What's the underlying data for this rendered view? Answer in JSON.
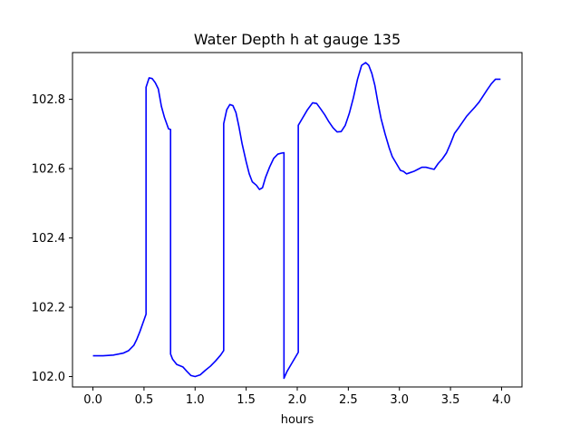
{
  "chart_data": {
    "type": "line",
    "title": "Water Depth h at gauge 135",
    "xlabel": "hours",
    "ylabel": "",
    "xlim": [
      -0.2,
      4.2
    ],
    "ylim": [
      101.97,
      102.935
    ],
    "grid": false,
    "x_ticks": [
      0.0,
      0.5,
      1.0,
      1.5,
      2.0,
      2.5,
      3.0,
      3.5,
      4.0
    ],
    "x_tick_labels": [
      "0.0",
      "0.5",
      "1.0",
      "1.5",
      "2.0",
      "2.5",
      "3.0",
      "3.5",
      "4.0"
    ],
    "y_ticks": [
      102.0,
      102.2,
      102.4,
      102.6,
      102.8
    ],
    "y_tick_labels": [
      "102.0",
      "102.2",
      "102.4",
      "102.6",
      "102.8"
    ],
    "series": [
      {
        "color": "#0000ff",
        "x": [
          0.0,
          0.1,
          0.2,
          0.3,
          0.35,
          0.4,
          0.43,
          0.46,
          0.49,
          0.52,
          0.52,
          0.55,
          0.58,
          0.61,
          0.64,
          0.67,
          0.7,
          0.74,
          0.76,
          0.76,
          0.78,
          0.82,
          0.88,
          0.92,
          0.96,
          1.0,
          1.05,
          1.1,
          1.15,
          1.2,
          1.25,
          1.28,
          1.28,
          1.31,
          1.34,
          1.37,
          1.4,
          1.43,
          1.46,
          1.5,
          1.53,
          1.56,
          1.6,
          1.63,
          1.66,
          1.69,
          1.73,
          1.77,
          1.81,
          1.85,
          1.87,
          1.87,
          1.9,
          1.94,
          1.98,
          2.01,
          2.01,
          2.05,
          2.1,
          2.15,
          2.19,
          2.23,
          2.27,
          2.31,
          2.35,
          2.39,
          2.43,
          2.47,
          2.51,
          2.55,
          2.59,
          2.63,
          2.67,
          2.7,
          2.73,
          2.76,
          2.79,
          2.82,
          2.86,
          2.9,
          2.93,
          2.97,
          3.01,
          3.04,
          3.07,
          3.1,
          3.14,
          3.18,
          3.22,
          3.26,
          3.3,
          3.34,
          3.38,
          3.42,
          3.46,
          3.5,
          3.54,
          3.58,
          3.62,
          3.66,
          3.7,
          3.74,
          3.78,
          3.82,
          3.86,
          3.9,
          3.94,
          3.97,
          3.99
        ],
        "y": [
          102.06,
          102.06,
          102.062,
          102.068,
          102.075,
          102.09,
          102.108,
          102.13,
          102.155,
          102.18,
          102.835,
          102.862,
          102.86,
          102.848,
          102.83,
          102.78,
          102.748,
          102.715,
          102.713,
          102.065,
          102.05,
          102.035,
          102.028,
          102.015,
          102.003,
          102.0,
          102.005,
          102.018,
          102.03,
          102.045,
          102.062,
          102.075,
          102.73,
          102.77,
          102.785,
          102.782,
          102.762,
          102.72,
          102.672,
          102.62,
          102.585,
          102.562,
          102.552,
          102.54,
          102.545,
          102.575,
          102.605,
          102.63,
          102.642,
          102.645,
          102.646,
          101.995,
          102.015,
          102.035,
          102.055,
          102.07,
          102.725,
          102.745,
          102.77,
          102.79,
          102.788,
          102.772,
          102.755,
          102.735,
          102.718,
          102.706,
          102.707,
          102.725,
          102.76,
          102.805,
          102.858,
          102.898,
          102.906,
          102.898,
          102.875,
          102.84,
          102.79,
          102.745,
          102.7,
          102.66,
          102.635,
          102.615,
          102.595,
          102.592,
          102.585,
          102.588,
          102.592,
          102.598,
          102.604,
          102.604,
          102.601,
          102.598,
          102.615,
          102.628,
          102.645,
          102.672,
          102.702,
          102.718,
          102.735,
          102.752,
          102.765,
          102.778,
          102.792,
          102.81,
          102.828,
          102.845,
          102.858,
          102.858,
          102.858
        ]
      }
    ]
  }
}
